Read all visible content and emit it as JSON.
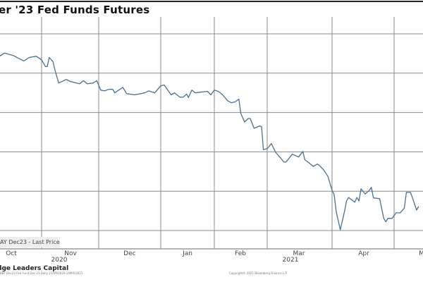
{
  "chart_data": {
    "type": "line",
    "title": "er '23 Fed Funds Futures",
    "legend": {
      "label": "AY   Dec23 - Last Price",
      "placement": "bottom-left"
    },
    "x_tick_labels": [
      "Oct",
      "Nov",
      "Dec",
      "Jan",
      "Feb",
      "Mar",
      "Apr",
      "M"
    ],
    "x_year_labels": [
      "2020",
      "2021"
    ],
    "y_tick_labels": [],
    "grid": true,
    "line_color": "#4a7090",
    "series": [
      {
        "x": [
          "2020-10-08",
          "2020-10-11",
          "2020-10-16",
          "2020-10-22",
          "2020-10-25",
          "2020-10-29",
          "2020-11-01",
          "2020-11-03",
          "2020-11-04",
          "2020-11-05",
          "2020-11-07",
          "2020-11-08",
          "2020-11-10",
          "2020-11-14",
          "2020-11-16",
          "2020-11-21",
          "2020-11-23",
          "2020-11-25",
          "2020-11-28",
          "2020-11-30",
          "2020-12-02",
          "2020-12-04",
          "2020-12-06",
          "2020-12-08",
          "2020-12-09",
          "2020-12-13",
          "2020-12-15",
          "2020-12-19",
          "2020-12-24",
          "2020-12-26",
          "2020-12-29",
          "2021-01-01",
          "2021-01-03",
          "2021-01-07",
          "2021-01-09",
          "2021-01-12",
          "2021-01-14",
          "2021-01-16",
          "2021-01-17",
          "2021-01-19",
          "2021-01-21",
          "2021-01-28",
          "2021-01-30",
          "2021-02-01",
          "2021-02-03",
          "2021-02-05",
          "2021-02-07",
          "2021-02-08",
          "2021-02-10",
          "2021-02-12",
          "2021-02-14",
          "2021-02-15",
          "2021-02-17",
          "2021-02-19",
          "2021-02-20",
          "2021-02-22",
          "2021-02-25",
          "2021-02-26",
          "2021-02-27",
          "2021-03-01",
          "2021-03-03",
          "2021-03-05",
          "2021-03-07",
          "2021-03-09",
          "2021-03-10",
          "2021-03-13",
          "2021-03-16",
          "2021-03-18",
          "2021-03-19",
          "2021-03-21",
          "2021-03-23",
          "2021-03-25",
          "2021-03-26",
          "2021-03-28",
          "2021-03-30",
          "2021-04-01",
          "2021-04-02",
          "2021-04-03",
          "2021-04-05",
          "2021-04-07",
          "2021-04-08",
          "2021-04-09",
          "2021-04-12",
          "2021-04-13",
          "2021-04-14",
          "2021-04-15",
          "2021-04-17",
          "2021-04-19",
          "2021-04-20",
          "2021-04-21",
          "2021-04-24",
          "2021-04-26",
          "2021-04-27",
          "2021-04-28",
          "2021-04-30",
          "2021-05-02",
          "2021-05-04",
          "2021-05-06",
          "2021-05-07",
          "2021-05-09",
          "2021-05-10",
          "2021-05-12",
          "2021-05-13"
        ],
        "values": [
          4.42,
          4.51,
          4.45,
          4.31,
          4.4,
          4.43,
          4.34,
          4.17,
          4.17,
          4.4,
          4.29,
          4.08,
          3.75,
          3.84,
          3.79,
          3.73,
          3.81,
          3.73,
          3.75,
          3.81,
          3.57,
          3.55,
          3.59,
          3.59,
          3.5,
          3.64,
          3.48,
          3.45,
          3.5,
          3.55,
          3.5,
          3.68,
          3.7,
          3.45,
          3.5,
          3.39,
          3.39,
          3.47,
          3.38,
          3.57,
          3.5,
          3.54,
          3.45,
          3.57,
          3.54,
          3.47,
          3.36,
          3.3,
          3.25,
          3.27,
          3.34,
          2.98,
          2.76,
          2.85,
          2.85,
          2.6,
          2.66,
          2.64,
          2.06,
          2.08,
          2.21,
          1.99,
          1.87,
          1.74,
          1.74,
          1.94,
          1.87,
          2.01,
          1.8,
          1.72,
          1.63,
          1.69,
          1.65,
          1.54,
          1.38,
          1.02,
          0.92,
          0.48,
          0.02,
          0.48,
          0.75,
          0.84,
          0.72,
          0.84,
          0.75,
          1.06,
          0.93,
          1.02,
          1.1,
          0.83,
          0.81,
          0.31,
          0.22,
          0.31,
          0.31,
          0.45,
          0.45,
          0.57,
          0.97,
          0.97,
          0.83,
          0.52,
          0.61
        ]
      }
    ]
  },
  "footer": {
    "firm": "dge Leaders Capital",
    "fine_print": "BBY   Dec23 Fed Fund Dec 23   Daily 21APR2020-14MAY2021",
    "copyright": "Copyright© 2021 Bloomberg Finance L.P."
  }
}
